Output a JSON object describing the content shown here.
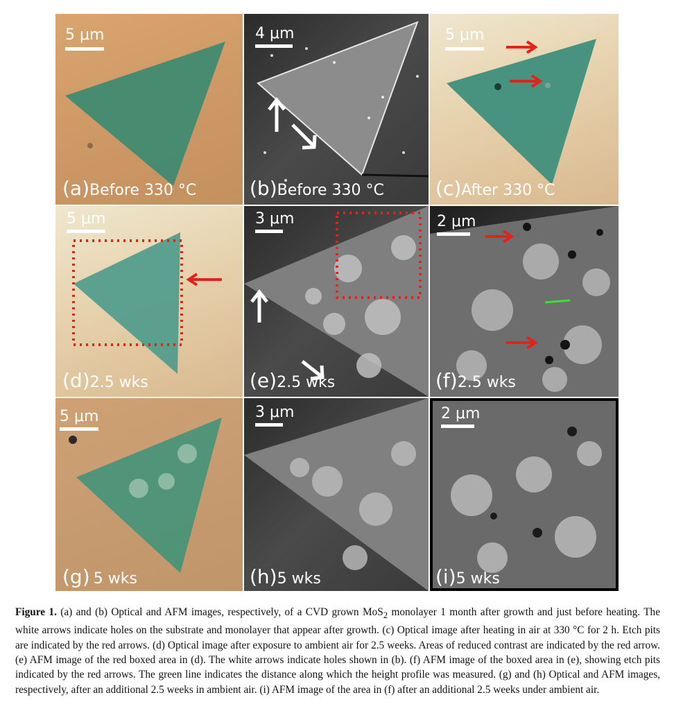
{
  "figure": {
    "panels": [
      {
        "id": "a",
        "letter": "(a)",
        "condition": "Before 330 °C",
        "scale": "5 μm",
        "kind": "optical"
      },
      {
        "id": "b",
        "letter": "(b)",
        "condition": "Before 330 °C",
        "scale": "4 μm",
        "kind": "afm"
      },
      {
        "id": "c",
        "letter": "(c)",
        "condition": "After 330 °C",
        "scale": "5 μm",
        "kind": "optical"
      },
      {
        "id": "d",
        "letter": "(d)",
        "condition": "2.5 wks",
        "scale": "5 μm",
        "kind": "optical"
      },
      {
        "id": "e",
        "letter": "(e)",
        "condition": "2.5 wks",
        "scale": "3 μm",
        "kind": "afm"
      },
      {
        "id": "f",
        "letter": "(f)",
        "condition": "2.5 wks",
        "scale": "2 μm",
        "kind": "afm"
      },
      {
        "id": "g",
        "letter": "(g)",
        "condition": "5 wks",
        "scale": "5 μm",
        "kind": "optical"
      },
      {
        "id": "h",
        "letter": "(h)",
        "condition": "5 wks",
        "scale": "3 μm",
        "kind": "afm"
      },
      {
        "id": "i",
        "letter": "(i)",
        "condition": "5 wks",
        "scale": "2 μm",
        "kind": "afm"
      }
    ],
    "colors": {
      "monolayer": "#3f8a72",
      "arrow_red": "#e2231a",
      "box_red": "#e2231a",
      "profile_green": "#3adf3a"
    }
  },
  "caption": {
    "label": "Figure 1.",
    "text_before_sub": "  (a) and (b) Optical and AFM images, respectively, of a CVD grown MoS",
    "subscript": "2",
    "text_after_sub": " monolayer 1 month after growth and just before heating. The white arrows indicate holes on the substrate and monolayer that appear after growth. (c) Optical image after heating in air at 330 °C for 2 h. Etch pits are indicated by the red arrows. (d) Optical image after exposure to ambient air for 2.5 weeks. Areas of reduced contrast are indicated by the red arrow. (e) AFM image of the red boxed area in (d). The white arrows indicate holes shown in (b). (f) AFM image of the boxed area in (e), showing etch pits indicated by the red arrows. The green line indicates the distance along which the height profile was measured. (g) and (h) Optical and AFM images, respectively, after an additional 2.5 weeks in ambient air. (i) AFM image of the area in (f) after an additional 2.5 weeks under ambient air."
  }
}
